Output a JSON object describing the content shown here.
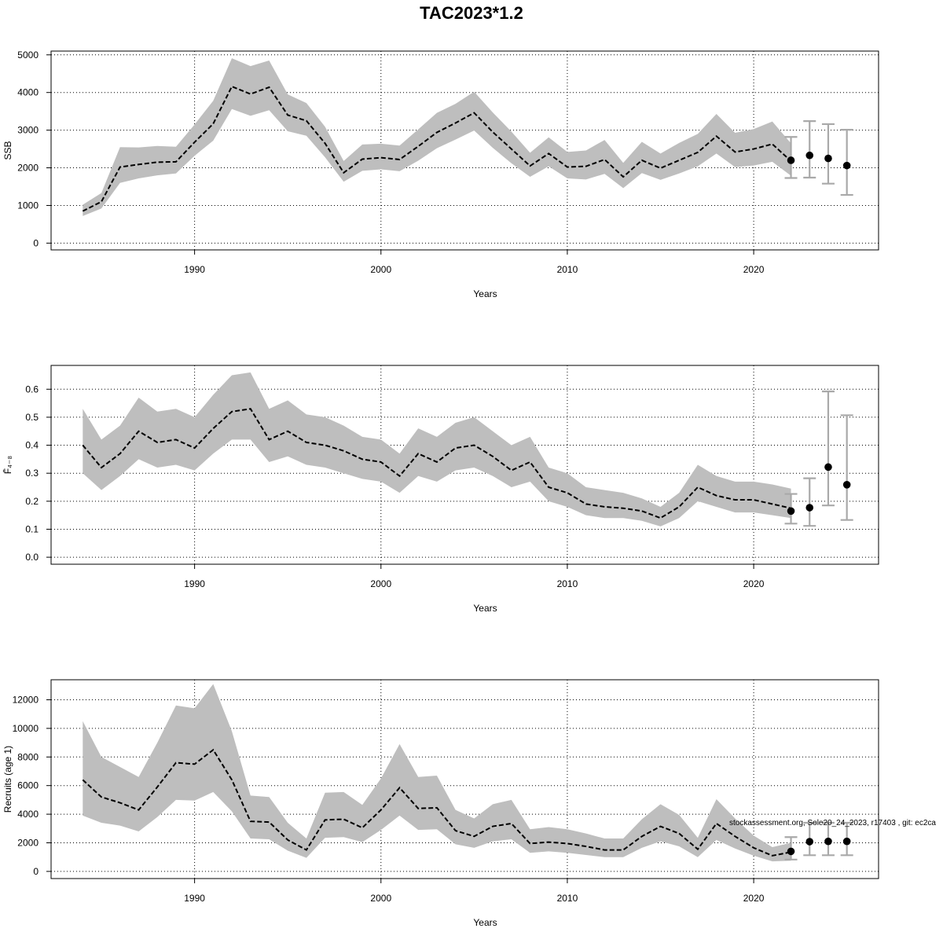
{
  "chart_data": {
    "title": "TAC2023*1.2",
    "footnote": "stockassessment.org, Sole20_24_2023, r17403 , git: ec2ca",
    "years": [
      1984,
      1985,
      1986,
      1987,
      1988,
      1989,
      1990,
      1991,
      1992,
      1993,
      1994,
      1995,
      1996,
      1997,
      1998,
      1999,
      2000,
      2001,
      2002,
      2003,
      2004,
      2005,
      2006,
      2007,
      2008,
      2009,
      2010,
      2011,
      2012,
      2013,
      2014,
      2015,
      2016,
      2017,
      2018,
      2019,
      2020,
      2021,
      2022
    ],
    "panels": [
      {
        "type": "line",
        "ylabel": "SSB",
        "xlabel": "Years",
        "xlim": [
          1982.3,
          2026.7
        ],
        "ylim": [
          -180,
          5100
        ],
        "yticks": [
          0,
          1000,
          2000,
          3000,
          4000,
          5000
        ],
        "xticks": [
          1990,
          2000,
          2010,
          2020
        ],
        "estimate": [
          850,
          1100,
          2020,
          2090,
          2150,
          2160,
          2680,
          3170,
          4160,
          3960,
          4140,
          3400,
          3250,
          2650,
          1870,
          2230,
          2270,
          2220,
          2570,
          2940,
          3190,
          3460,
          2950,
          2500,
          2050,
          2380,
          2020,
          2040,
          2220,
          1760,
          2200,
          1990,
          2200,
          2410,
          2840,
          2420,
          2500,
          2630,
          2180
        ],
        "lower": [
          720,
          920,
          1600,
          1720,
          1800,
          1850,
          2320,
          2720,
          3560,
          3380,
          3530,
          2970,
          2850,
          2280,
          1630,
          1920,
          1960,
          1910,
          2190,
          2520,
          2750,
          2990,
          2530,
          2120,
          1760,
          2040,
          1720,
          1690,
          1840,
          1460,
          1860,
          1680,
          1850,
          2040,
          2380,
          2020,
          2060,
          2160,
          1790
        ],
        "upper": [
          1020,
          1330,
          2550,
          2540,
          2580,
          2560,
          3150,
          3780,
          4910,
          4700,
          4850,
          3950,
          3720,
          3090,
          2180,
          2620,
          2640,
          2590,
          3020,
          3460,
          3700,
          4020,
          3470,
          2960,
          2400,
          2810,
          2420,
          2460,
          2740,
          2130,
          2690,
          2380,
          2660,
          2900,
          3430,
          2930,
          3030,
          3230,
          2650
        ],
        "forecast": {
          "years": [
            2022,
            2023,
            2024,
            2025
          ],
          "median": [
            2200,
            2330,
            2250,
            2060
          ],
          "low": [
            1730,
            1740,
            1580,
            1280
          ],
          "high": [
            2820,
            3240,
            3160,
            3010
          ]
        }
      },
      {
        "type": "line",
        "ylabel": "F̄₄₋₈",
        "xlabel": "Years",
        "xlim": [
          1982.3,
          2026.7
        ],
        "ylim": [
          -0.025,
          0.685
        ],
        "yticks": [
          0.0,
          0.1,
          0.2,
          0.3,
          0.4,
          0.5,
          0.6
        ],
        "ytick_labels": [
          "0.0",
          "0.1",
          "0.2",
          "0.3",
          "0.4",
          "0.5",
          "0.6"
        ],
        "xticks": [
          1990,
          2000,
          2010,
          2020
        ],
        "estimate": [
          0.4,
          0.32,
          0.37,
          0.45,
          0.41,
          0.42,
          0.39,
          0.46,
          0.52,
          0.53,
          0.42,
          0.45,
          0.41,
          0.4,
          0.38,
          0.35,
          0.34,
          0.29,
          0.37,
          0.34,
          0.39,
          0.4,
          0.36,
          0.31,
          0.34,
          0.25,
          0.23,
          0.19,
          0.18,
          0.175,
          0.165,
          0.14,
          0.18,
          0.25,
          0.22,
          0.205,
          0.205,
          0.19,
          0.175
        ],
        "lower": [
          0.3,
          0.24,
          0.29,
          0.35,
          0.32,
          0.33,
          0.31,
          0.37,
          0.42,
          0.42,
          0.34,
          0.36,
          0.33,
          0.32,
          0.3,
          0.28,
          0.27,
          0.23,
          0.29,
          0.27,
          0.31,
          0.32,
          0.29,
          0.25,
          0.27,
          0.2,
          0.18,
          0.15,
          0.14,
          0.14,
          0.13,
          0.11,
          0.14,
          0.2,
          0.18,
          0.16,
          0.16,
          0.15,
          0.14
        ],
        "upper": [
          0.53,
          0.42,
          0.47,
          0.57,
          0.52,
          0.53,
          0.5,
          0.58,
          0.65,
          0.66,
          0.53,
          0.56,
          0.51,
          0.5,
          0.47,
          0.43,
          0.42,
          0.37,
          0.46,
          0.43,
          0.48,
          0.5,
          0.45,
          0.4,
          0.43,
          0.32,
          0.3,
          0.25,
          0.24,
          0.23,
          0.21,
          0.18,
          0.23,
          0.33,
          0.29,
          0.27,
          0.27,
          0.26,
          0.245
        ],
        "forecast": {
          "years": [
            2022,
            2023,
            2024,
            2025
          ],
          "median": [
            0.165,
            0.177,
            0.322,
            0.259
          ],
          "low": [
            0.12,
            0.112,
            0.185,
            0.133
          ],
          "high": [
            0.226,
            0.282,
            0.592,
            0.507
          ]
        }
      },
      {
        "type": "line",
        "ylabel": "Recruits (age 1)",
        "xlabel": "Years",
        "xlim": [
          1982.3,
          2026.7
        ],
        "ylim": [
          -500,
          13400
        ],
        "yticks": [
          0,
          2000,
          4000,
          6000,
          8000,
          10000,
          12000
        ],
        "xticks": [
          1990,
          2000,
          2010,
          2020
        ],
        "estimate": [
          6400,
          5200,
          4800,
          4300,
          5900,
          7600,
          7500,
          8500,
          6400,
          3500,
          3450,
          2200,
          1500,
          3600,
          3650,
          3050,
          4300,
          5850,
          4400,
          4450,
          2850,
          2450,
          3150,
          3350,
          1950,
          2050,
          1950,
          1750,
          1500,
          1500,
          2450,
          3150,
          2650,
          1550,
          3350,
          2450,
          1650,
          1100,
          1350
        ],
        "lower": [
          3900,
          3400,
          3200,
          2800,
          3800,
          5000,
          4950,
          5550,
          4200,
          2300,
          2250,
          1450,
          950,
          2350,
          2400,
          2050,
          2900,
          3900,
          2900,
          2950,
          1900,
          1650,
          2100,
          2250,
          1300,
          1400,
          1300,
          1150,
          1000,
          1000,
          1650,
          2100,
          1750,
          1000,
          2200,
          1600,
          1100,
          700,
          750
        ],
        "upper": [
          10500,
          8000,
          7300,
          6600,
          9000,
          11600,
          11400,
          13100,
          9800,
          5300,
          5200,
          3400,
          2300,
          5500,
          5550,
          4650,
          6500,
          8900,
          6600,
          6700,
          4300,
          3700,
          4700,
          5000,
          2950,
          3100,
          2950,
          2650,
          2300,
          2300,
          3650,
          4700,
          3950,
          2350,
          5050,
          3700,
          2500,
          1700,
          2000
        ],
        "forecast": {
          "years": [
            2022,
            2023,
            2024,
            2025
          ],
          "median": [
            1400,
            2080,
            2100,
            2100
          ],
          "low": [
            830,
            1130,
            1130,
            1130
          ],
          "high": [
            2400,
            3400,
            3400,
            3400
          ]
        }
      }
    ]
  }
}
